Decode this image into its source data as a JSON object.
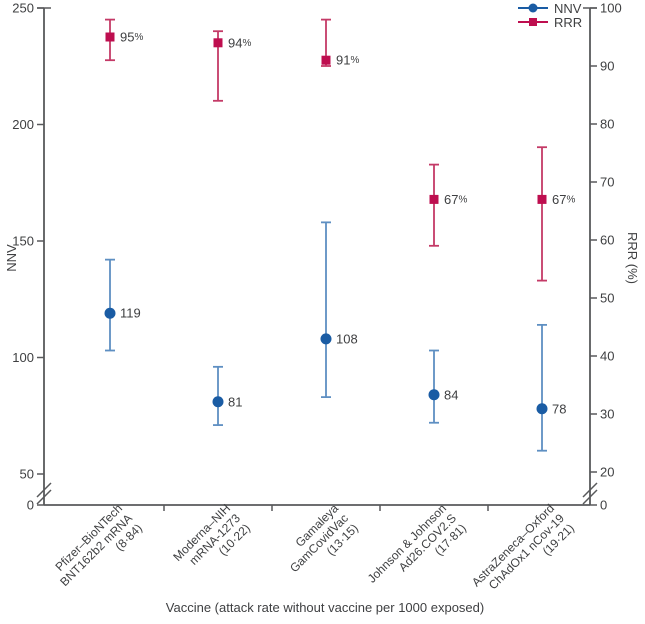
{
  "colors": {
    "nnv_marker": "#1A5CA4",
    "nnv_bar": "#5E8FC2",
    "rrr_marker": "#BE0E4F",
    "rrr_bar": "#C43A67",
    "axis": "#58595B",
    "text": "#3F4042"
  },
  "chart_data": {
    "type": "scatter",
    "title": "",
    "x_axis_title": "Vaccine (attack rate without vaccine per 1000 exposed)",
    "grid": false,
    "legend_position": "top-right",
    "left_axis": {
      "title": "NNV",
      "ticks": [
        0,
        50,
        100,
        150,
        200,
        250
      ],
      "range": [
        0,
        250
      ],
      "break_between": [
        0,
        50
      ]
    },
    "right_axis": {
      "title": "RRR (%)",
      "ticks": [
        0,
        20,
        30,
        40,
        50,
        60,
        70,
        80,
        90,
        100
      ],
      "range": [
        0,
        100
      ],
      "break_between": [
        0,
        20
      ]
    },
    "legend": [
      {
        "label": "NNV",
        "marker": "circle",
        "color": "#1A5CA4"
      },
      {
        "label": "RRR",
        "marker": "square",
        "color": "#BE0E4F"
      }
    ],
    "categories": [
      {
        "lines": [
          "Pfizer–BioNTech",
          "BNT162b2 mRNA",
          "(8·84)"
        ]
      },
      {
        "lines": [
          "Moderna–NIH",
          "mRNA-1273",
          "(10·22)"
        ]
      },
      {
        "lines": [
          "Gamaleya",
          "GamCovidVac",
          "(13·15)"
        ]
      },
      {
        "lines": [
          "Johnson & Johnson",
          "Ad26.COV2.S",
          "(17·81)"
        ]
      },
      {
        "lines": [
          "AstraZeneca–Oxford",
          "ChAdOx1 nCov-19",
          "(19·21)"
        ]
      }
    ],
    "series": [
      {
        "name": "NNV",
        "axis": "left",
        "marker": "circle",
        "marker_color": "#1A5CA4",
        "bar_color": "#5E8FC2",
        "values": [
          119,
          81,
          108,
          84,
          78
        ],
        "ci_low": [
          103,
          71,
          83,
          72,
          60
        ],
        "ci_high": [
          142,
          96,
          158,
          103,
          114
        ],
        "point_labels": [
          "119",
          "81",
          "108",
          "84",
          "78"
        ]
      },
      {
        "name": "RRR",
        "axis": "right",
        "marker": "square",
        "marker_color": "#BE0E4F",
        "bar_color": "#C43A67",
        "values": [
          95,
          94,
          91,
          67,
          67
        ],
        "ci_low": [
          91,
          84,
          90,
          59,
          53
        ],
        "ci_high": [
          98,
          96,
          98,
          73,
          76
        ],
        "point_labels": [
          "95%",
          "94%",
          "91%",
          "67%",
          "67%"
        ]
      }
    ]
  }
}
